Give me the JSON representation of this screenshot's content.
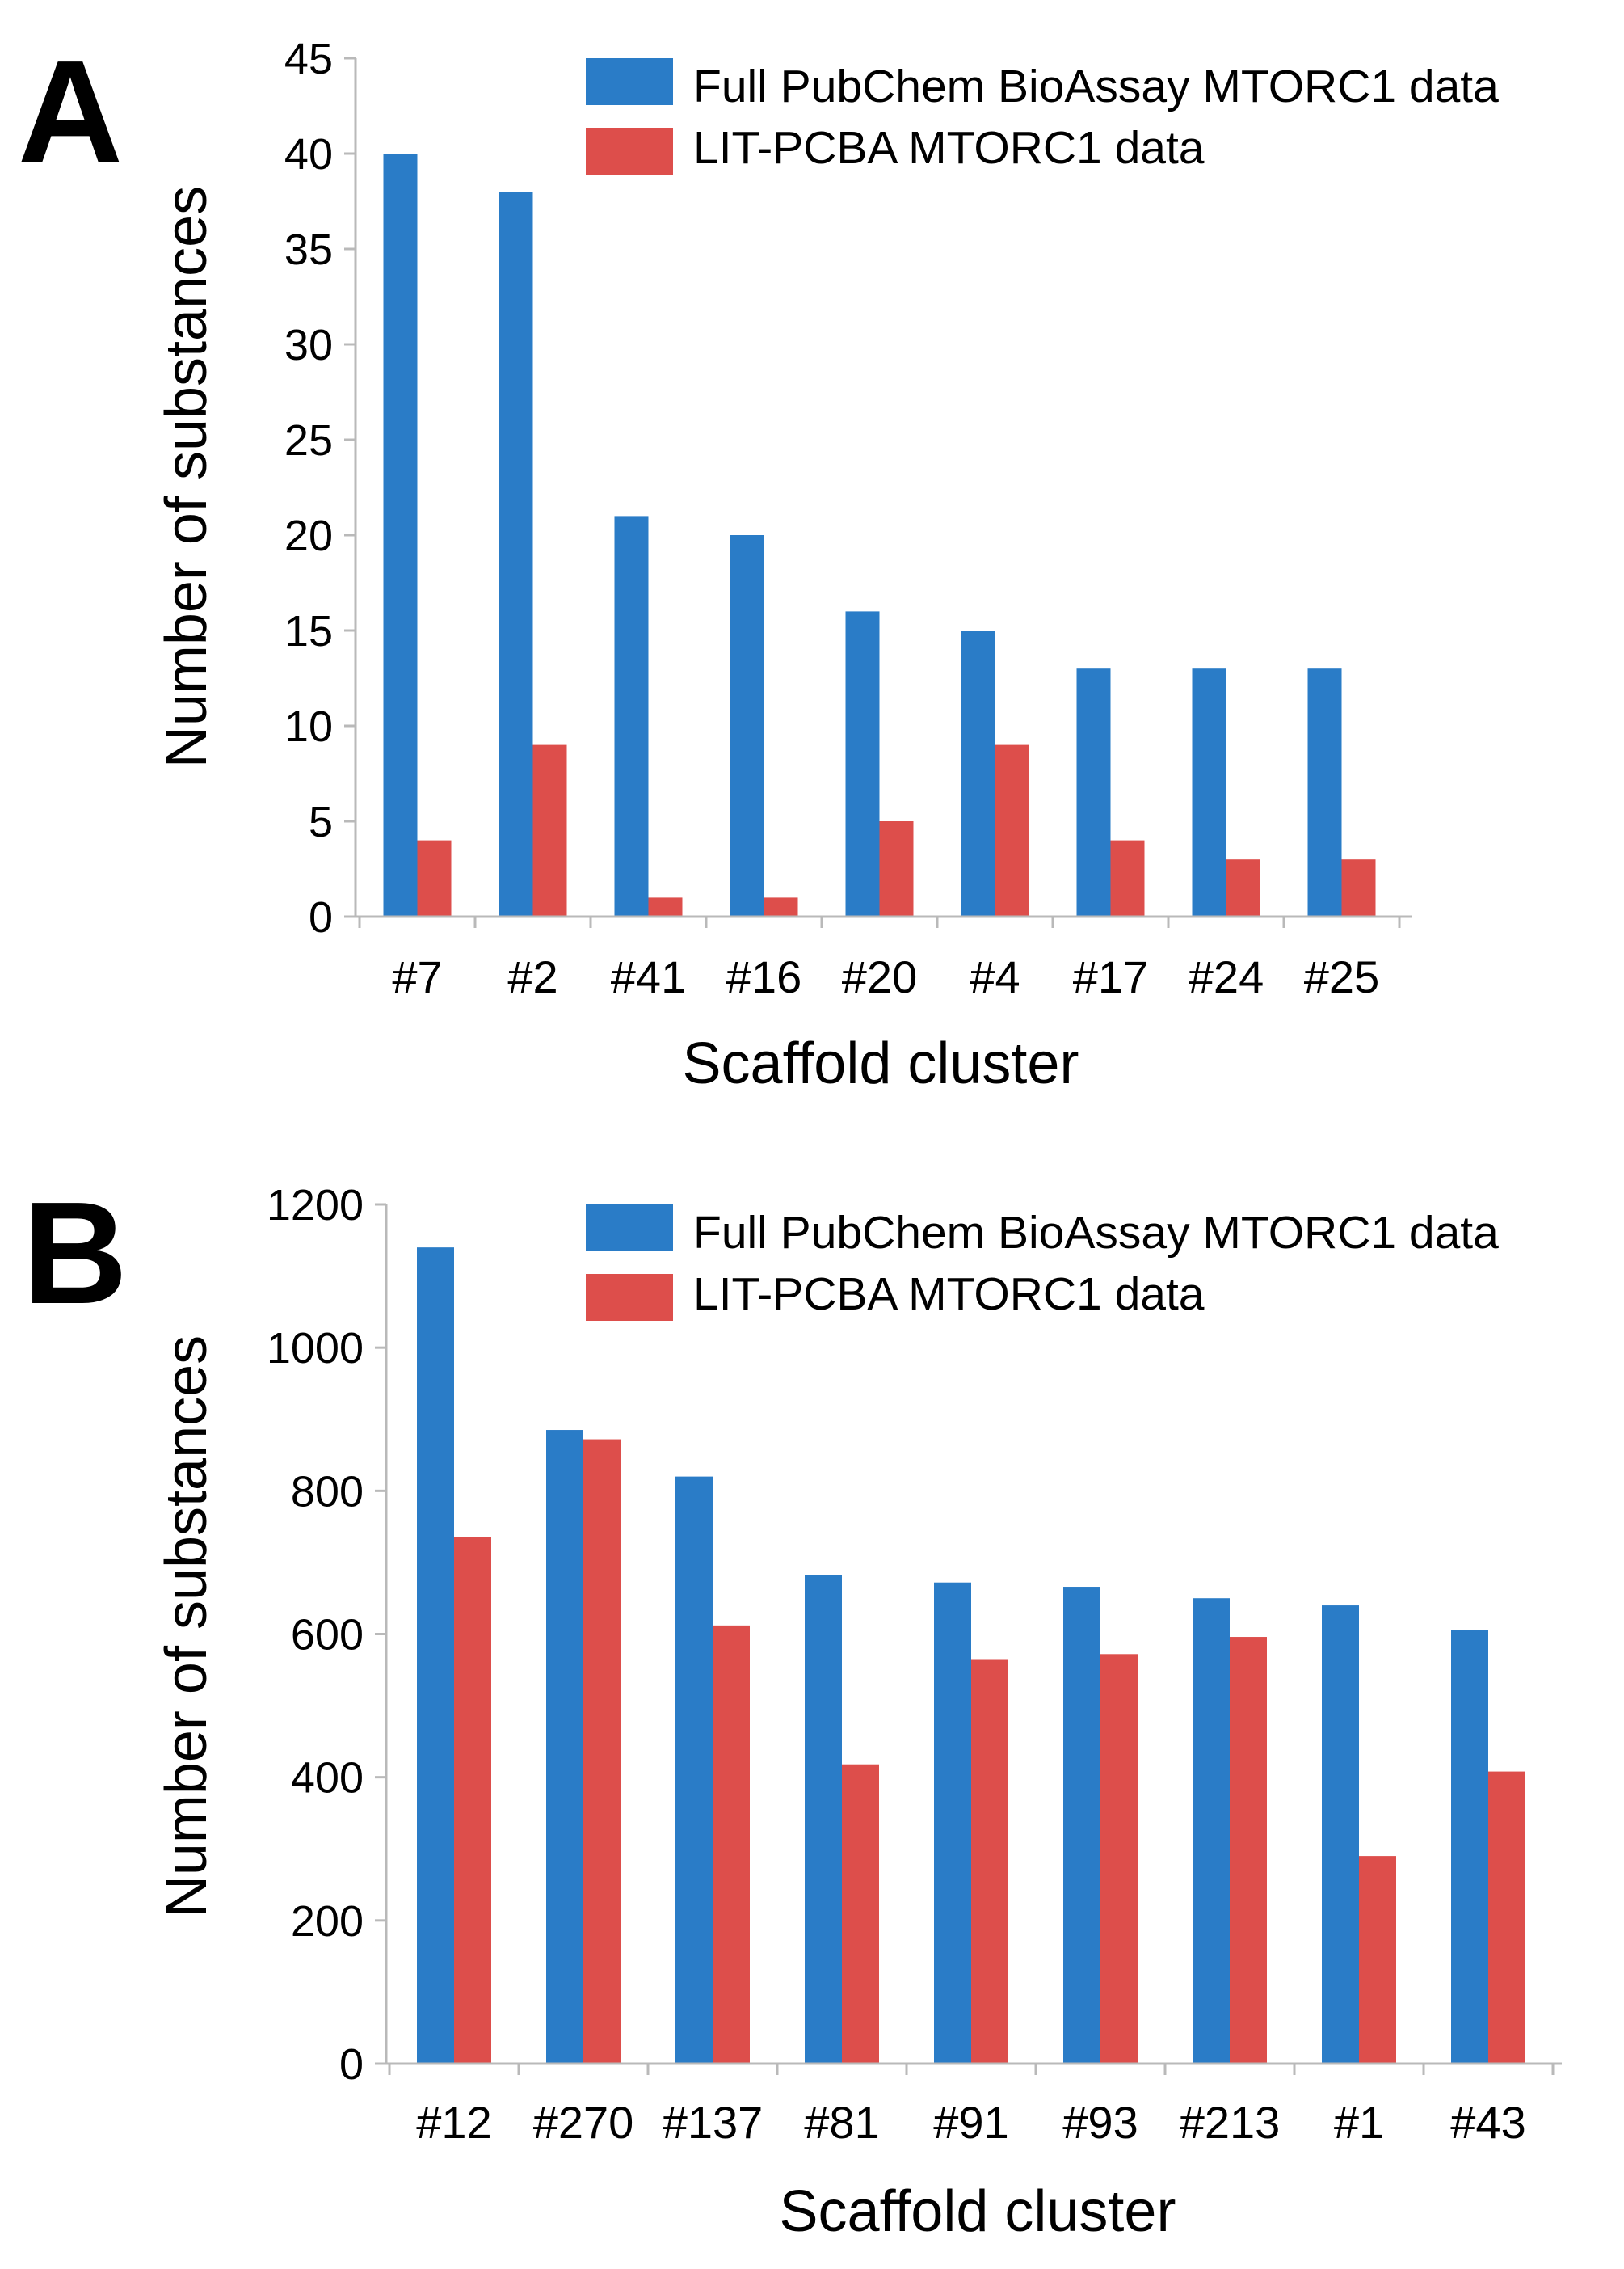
{
  "figure": {
    "panels": [
      "A",
      "B"
    ]
  },
  "chart_data": [
    {
      "panel": "A",
      "type": "bar",
      "title": "",
      "xlabel": "Scaffold cluster",
      "ylabel": "Number of substances",
      "ylim": [
        0,
        45
      ],
      "yticks": [
        "0",
        "5",
        "10",
        "15",
        "20",
        "25",
        "30",
        "35",
        "40",
        "45"
      ],
      "legend_position": "top-right",
      "categories": [
        "#7",
        "#2",
        "#41",
        "#16",
        "#20",
        "#4",
        "#17",
        "#24",
        "#25"
      ],
      "series": [
        {
          "name": "Full PubChem BioAssay MTORC1 data",
          "color": "#2a7cc7",
          "values": [
            40,
            38,
            21,
            20,
            16,
            15,
            13,
            13,
            13
          ]
        },
        {
          "name": "LIT-PCBA MTORC1 data",
          "color": "#dd4e4b",
          "values": [
            4,
            9,
            1,
            1,
            5,
            9,
            4,
            3,
            3
          ]
        }
      ]
    },
    {
      "panel": "B",
      "type": "bar",
      "title": "",
      "xlabel": "Scaffold cluster",
      "ylabel": "Number of substances",
      "ylim": [
        0,
        1200
      ],
      "yticks": [
        "0",
        "200",
        "400",
        "600",
        "800",
        "1000",
        "1200"
      ],
      "legend_position": "top-right",
      "categories": [
        "#12",
        "#270",
        "#137",
        "#81",
        "#91",
        "#93",
        "#213",
        "#1",
        "#43"
      ],
      "series": [
        {
          "name": "Full PubChem BioAssay MTORC1 data",
          "color": "#2a7cc7",
          "values": [
            1140,
            885,
            820,
            682,
            672,
            666,
            650,
            640,
            606
          ]
        },
        {
          "name": "LIT-PCBA MTORC1 data",
          "color": "#dd4e4b",
          "values": [
            735,
            872,
            612,
            418,
            565,
            572,
            596,
            290,
            408
          ]
        }
      ]
    }
  ]
}
